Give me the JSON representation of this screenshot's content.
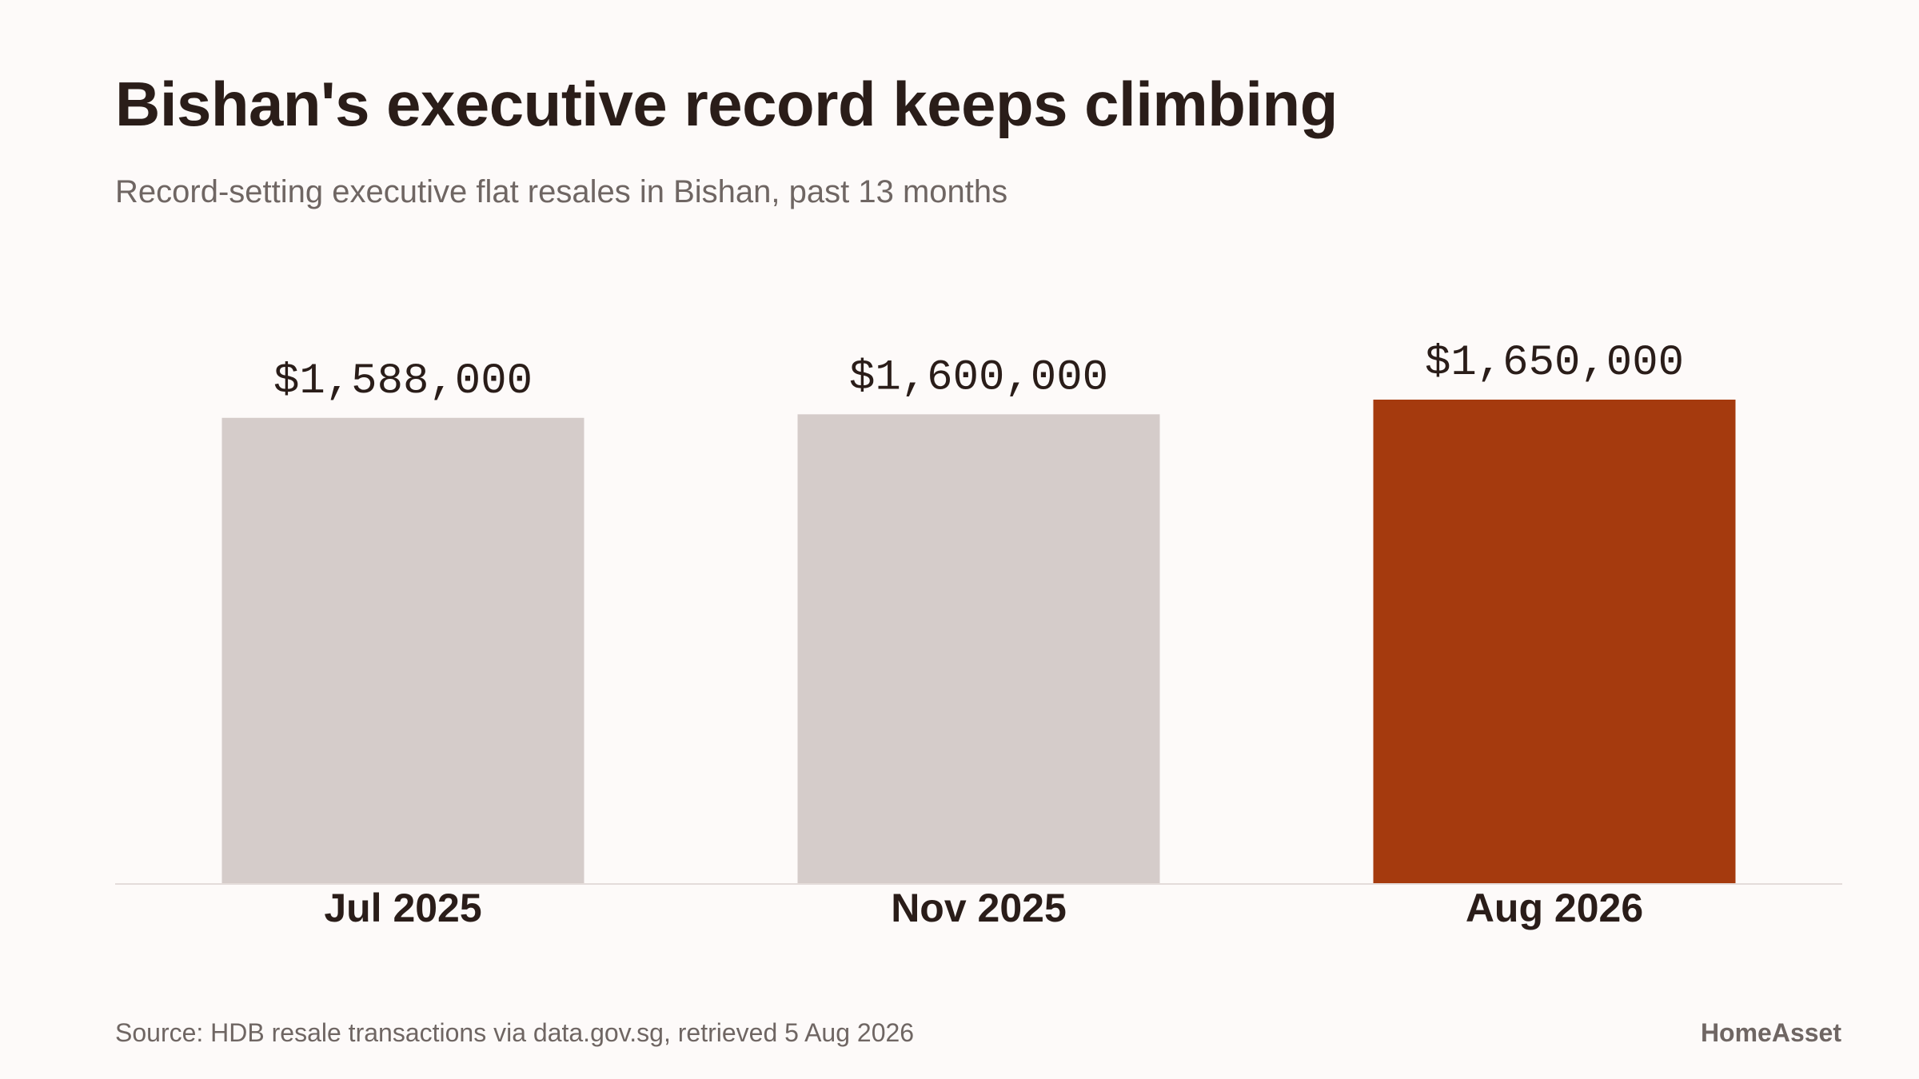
{
  "header": {
    "title": "Bishan's executive record keeps climbing",
    "subtitle": "Record-setting executive flat resales in Bishan, past 13 months"
  },
  "footer": {
    "source": "Source: HDB resale transactions via data.gov.sg, retrieved 5 Aug 2026",
    "brand": "HomeAsset"
  },
  "colors": {
    "background": "#fdfaf9",
    "bar_default": "#d5ccca",
    "bar_highlight": "#a53a0e",
    "baseline": "#e4dcda",
    "text": "#2a1d19",
    "muted_text": "#6f6663"
  },
  "chart_data": {
    "type": "bar",
    "title": "Bishan's executive record keeps climbing",
    "subtitle": "Record-setting executive flat resales in Bishan, past 13 months",
    "xlabel": "",
    "ylabel": "",
    "categories": [
      "Jul 2025",
      "Nov 2025",
      "Aug 2026"
    ],
    "values": [
      1588000,
      1600000,
      1650000
    ],
    "value_labels": [
      "$1,588,000",
      "$1,600,000",
      "$1,650,000"
    ],
    "highlight": "Aug 2026",
    "ylim": [
      0,
      1650000
    ],
    "grid": false,
    "legend": "none"
  }
}
